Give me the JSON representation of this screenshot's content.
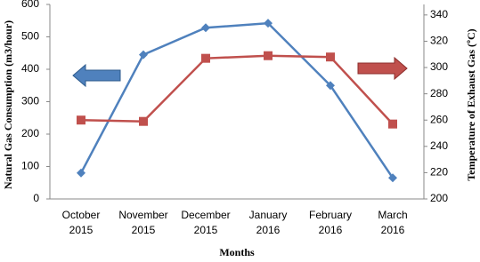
{
  "chart_data": {
    "type": "line",
    "x_label": "Months",
    "y_label": "Natural Gas Consumption (m3/hour)",
    "y2_label": "Temperature of Exhaust Gas (ºC)",
    "categories": [
      "October 2015",
      "November 2015",
      "December 2015",
      "January 2016",
      "February 2016",
      "March 2016"
    ],
    "series": [
      {
        "name": "Natural Gas Consumption",
        "color": "#4f81bd",
        "marker": "diamond",
        "values": [
          80,
          445,
          528,
          542,
          350,
          65
        ]
      },
      {
        "name": "Temperature of Exhaust Gas",
        "color": "#c0504d",
        "marker": "square",
        "axis": "y2",
        "values": [
          260,
          259,
          307,
          309,
          308,
          257
        ]
      }
    ],
    "ylim": [
      0,
      600
    ],
    "yticks": [
      0,
      100,
      200,
      300,
      400,
      500,
      600
    ],
    "y2lim": [
      200,
      348
    ],
    "y2ticks": [
      200,
      220,
      240,
      260,
      280,
      300,
      320,
      340
    ]
  }
}
